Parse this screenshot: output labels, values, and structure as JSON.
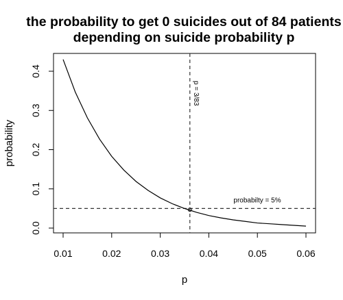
{
  "chart_data": {
    "type": "line",
    "title": [
      "the probability to get 0 suicides out of 84 patients",
      "depending on suicide probability p"
    ],
    "xlabel": "p",
    "ylabel": "probability",
    "xlim": [
      0.01,
      0.06
    ],
    "ylim": [
      0.0,
      0.4
    ],
    "xticks": [
      "0.01",
      "0.02",
      "0.03",
      "0.04",
      "0.05",
      "0.06"
    ],
    "yticks": [
      "0.0",
      "0.1",
      "0.2",
      "0.3",
      "0.4"
    ],
    "grid": false,
    "series": [
      {
        "x": [
          0.01,
          0.0125,
          0.015,
          0.0175,
          0.02,
          0.0225,
          0.025,
          0.0275,
          0.03,
          0.0325,
          0.035,
          0.0375,
          0.04,
          0.0425,
          0.045,
          0.0475,
          0.05,
          0.0525,
          0.055,
          0.0575,
          0.06
        ],
        "y": [
          0.43,
          0.347,
          0.281,
          0.227,
          0.183,
          0.148,
          0.119,
          0.096,
          0.077,
          0.062,
          0.05,
          0.04,
          0.032,
          0.026,
          0.021,
          0.017,
          0.013,
          0.011,
          0.009,
          0.007,
          0.005
        ]
      }
    ],
    "vline": {
      "x": 0.0361,
      "label": "p = 3/83"
    },
    "hline": {
      "y": 0.05,
      "label": "probabilty = 5%"
    },
    "marker": {
      "x": 0.0361,
      "y": 0.047
    }
  }
}
